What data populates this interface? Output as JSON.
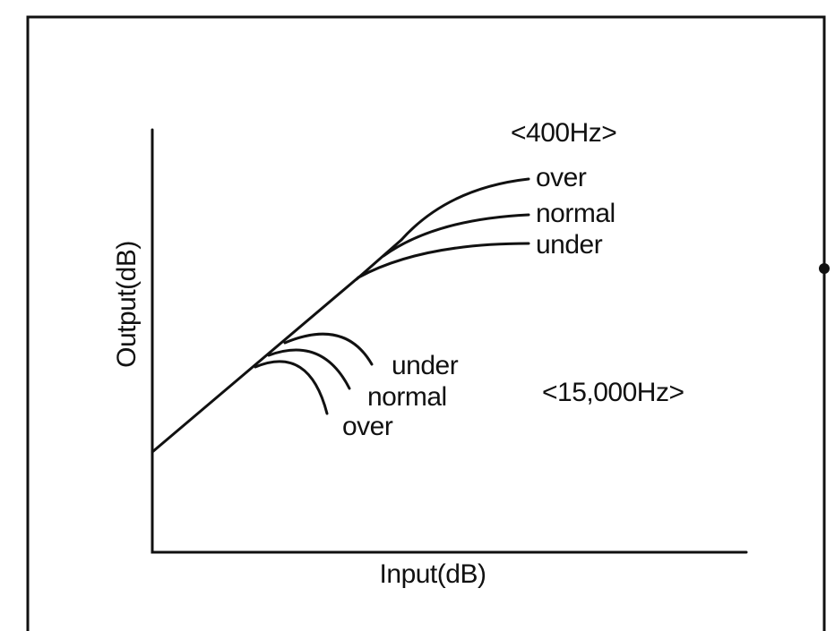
{
  "axes": {
    "x_label": "Input(dB)",
    "y_label": "Output(dB)"
  },
  "groups": [
    {
      "title": "<400Hz>",
      "curves": [
        "over",
        "normal",
        "under"
      ]
    },
    {
      "title": "<15,000Hz>",
      "curves": [
        "under",
        "normal",
        "over"
      ]
    }
  ]
}
